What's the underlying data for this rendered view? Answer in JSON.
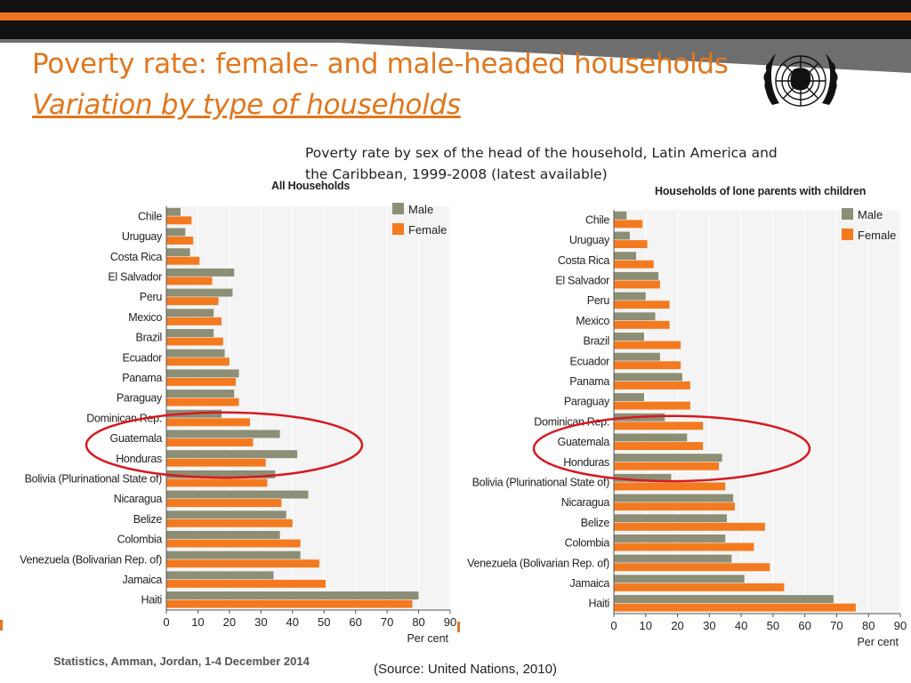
{
  "slide": {
    "title": "Poverty rate: female- and male-headed households",
    "subtitle": "Variation by type of households",
    "caption": "Poverty rate by sex of the head of the household, Latin America and the Caribbean, 1999-2008 (latest available)",
    "footer": "Statistics, Amman, Jordan, 1-4 December 2014",
    "source": "(Source: United Nations, 2010)",
    "logo_icon": "un-emblem-icon",
    "colors": {
      "accent": "#e2761d",
      "topbar": "#111111",
      "stripe": "#ee7322",
      "male": "#8c8e75",
      "female": "#f47a20",
      "highlight": "#d71920"
    }
  },
  "chart_data": [
    {
      "type": "bar",
      "orientation": "horizontal",
      "title": "All Households",
      "xlabel": "Per cent",
      "xlim": [
        0,
        90
      ],
      "xticks": [
        0,
        10,
        20,
        30,
        40,
        50,
        60,
        70,
        80,
        90
      ],
      "grid": true,
      "legend_position": "top-right",
      "highlighted_categories": [
        "Guatemala",
        "Honduras"
      ],
      "categories": [
        "Chile",
        "Uruguay",
        "Costa Rica",
        "El Salvador",
        "Peru",
        "Mexico",
        "Brazil",
        "Ecuador",
        "Panama",
        "Paraguay",
        "Dominican Rep.",
        "Guatemala",
        "Honduras",
        "Bolivia (Plurinational State of)",
        "Nicaragua",
        "Belize",
        "Colombia",
        "Venezuela (Bolivarian Rep. of)",
        "Jamaica",
        "Haiti"
      ],
      "series": [
        {
          "name": "Male",
          "color": "#8c8e75",
          "values": [
            4.5,
            6,
            7.5,
            21.5,
            21,
            15,
            15,
            18.5,
            23,
            21.5,
            17.5,
            36,
            41.5,
            34.5,
            45,
            38,
            36,
            42.5,
            34,
            80
          ]
        },
        {
          "name": "Female",
          "color": "#f47a20",
          "values": [
            8,
            8.5,
            10.5,
            14.5,
            16.5,
            17.5,
            18,
            20,
            22,
            23,
            26.5,
            27.5,
            31.5,
            32,
            36.5,
            40,
            42.5,
            48.5,
            50.5,
            78
          ]
        }
      ]
    },
    {
      "type": "bar",
      "orientation": "horizontal",
      "title": "Households of lone parents with children",
      "xlabel": "Per cent",
      "xlim": [
        0,
        90
      ],
      "xticks": [
        0,
        10,
        20,
        30,
        40,
        50,
        60,
        70,
        80,
        90
      ],
      "grid": true,
      "legend_position": "top-right",
      "highlighted_categories": [
        "Guatemala",
        "Honduras"
      ],
      "categories": [
        "Chile",
        "Uruguay",
        "Costa Rica",
        "El Salvador",
        "Peru",
        "Mexico",
        "Brazil",
        "Ecuador",
        "Panama",
        "Paraguay",
        "Dominican Rep.",
        "Guatemala",
        "Honduras",
        "Bolivia (Plurinational State of)",
        "Nicaragua",
        "Belize",
        "Colombia",
        "Venezuela (Bolivarian Rep. of)",
        "Jamaica",
        "Haiti"
      ],
      "series": [
        {
          "name": "Male",
          "color": "#8c8e75",
          "values": [
            4,
            5,
            7,
            14,
            10,
            13,
            9.5,
            14.5,
            21.5,
            9.5,
            16,
            23,
            34,
            18,
            37.5,
            35.5,
            35,
            37,
            41,
            69
          ]
        },
        {
          "name": "Female",
          "color": "#f47a20",
          "values": [
            9,
            10.5,
            12.5,
            14.5,
            17.5,
            17.5,
            21,
            21,
            24,
            24,
            28,
            28,
            33,
            35,
            38,
            47.5,
            44,
            49,
            53.5,
            76
          ]
        }
      ]
    }
  ]
}
